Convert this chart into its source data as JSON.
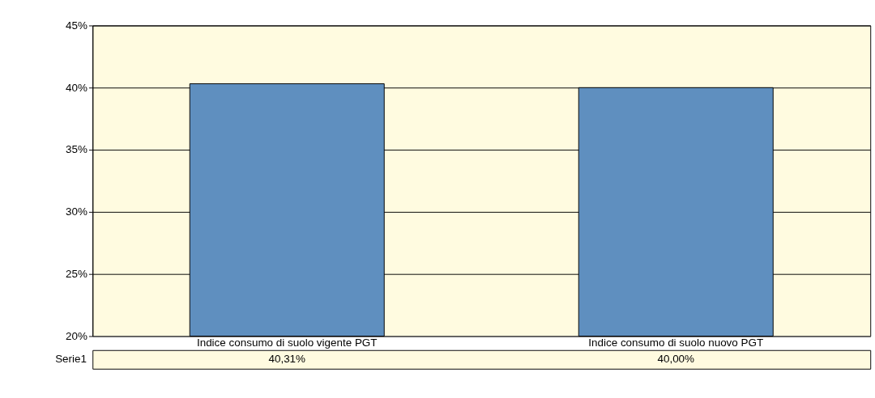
{
  "chart_data": {
    "type": "bar",
    "categories": [
      "Indice consumo di suolo vigente PGT",
      "Indice consumo di suolo nuovo PGT"
    ],
    "series": [
      {
        "name": "Serie1",
        "color": "#5f8fbf",
        "values": [
          40.31,
          40.0
        ],
        "value_labels": [
          "40,31%",
          "40,00%"
        ]
      }
    ],
    "ylim": [
      20,
      45
    ],
    "yticks": [
      {
        "value": 20,
        "label": "20%"
      },
      {
        "value": 25,
        "label": "25%"
      },
      {
        "value": 30,
        "label": "30%"
      },
      {
        "value": 35,
        "label": "35%"
      },
      {
        "value": 40,
        "label": "40%"
      },
      {
        "value": 45,
        "label": "45%"
      }
    ],
    "grid": "y"
  }
}
